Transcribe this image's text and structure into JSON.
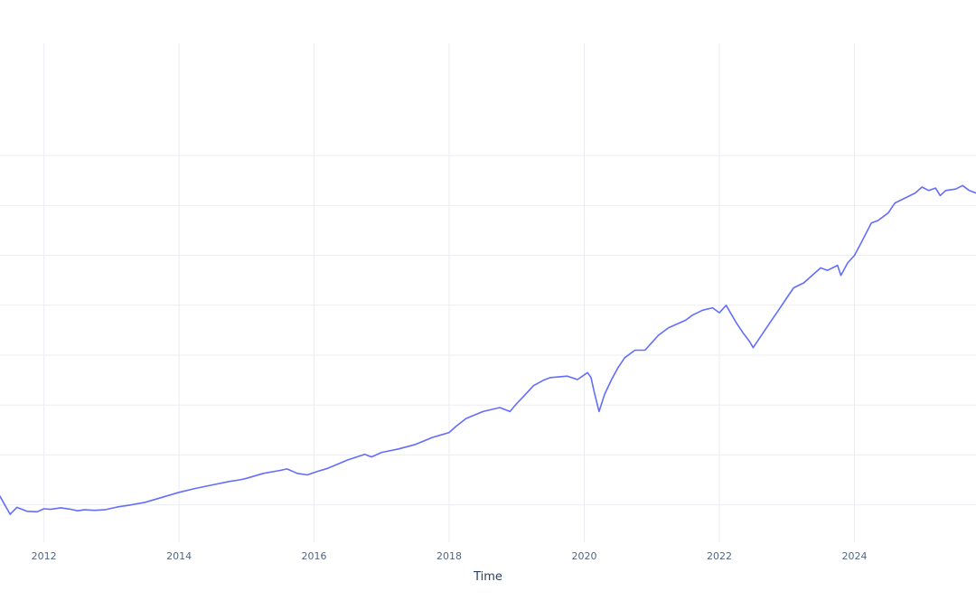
{
  "chart_data": {
    "type": "line",
    "title": "",
    "xlabel": "Time",
    "ylabel": "",
    "x_tick_labels": [
      "2012",
      "2014",
      "2016",
      "2018",
      "2020",
      "2022",
      "2024"
    ],
    "x_tick_values": [
      2012,
      2014,
      2016,
      2018,
      2020,
      2022,
      2024
    ],
    "xlim": [
      2011.35,
      2025.8
    ],
    "ylim": [
      0,
      1000
    ],
    "y_gridlines": [
      75,
      175,
      275,
      375,
      475,
      575,
      675,
      775
    ],
    "grid": true,
    "legend": "none",
    "colors": {
      "line": "#636efa",
      "grid": "#ebedf2"
    },
    "series": [
      {
        "x": [
          2011.35,
          2011.5,
          2011.6,
          2011.75,
          2011.9,
          2012.0,
          2012.1,
          2012.25,
          2012.4,
          2012.5,
          2012.6,
          2012.75,
          2012.9,
          2013.0,
          2013.1,
          2013.25,
          2013.5,
          2013.75,
          2014.0,
          2014.25,
          2014.5,
          2014.75,
          2014.9,
          2015.0,
          2015.25,
          2015.5,
          2015.6,
          2015.75,
          2015.9,
          2016.05,
          2016.2,
          2016.5,
          2016.75,
          2016.85,
          2017.0,
          2017.25,
          2017.5,
          2017.75,
          2017.9,
          2018.0,
          2018.1,
          2018.25,
          2018.5,
          2018.75,
          2018.9,
          2019.0,
          2019.1,
          2019.25,
          2019.4,
          2019.5,
          2019.75,
          2019.9,
          2020.05,
          2020.1,
          2020.15,
          2020.22,
          2020.3,
          2020.4,
          2020.5,
          2020.6,
          2020.75,
          2020.9,
          2021.0,
          2021.1,
          2021.25,
          2021.5,
          2021.6,
          2021.75,
          2021.9,
          2022.0,
          2022.1,
          2022.25,
          2022.35,
          2022.45,
          2022.5,
          2022.6,
          2022.75,
          2022.9,
          2023.0,
          2023.1,
          2023.25,
          2023.5,
          2023.6,
          2023.75,
          2023.8,
          2023.9,
          2024.0,
          2024.1,
          2024.25,
          2024.35,
          2024.5,
          2024.6,
          2024.75,
          2024.9,
          2025.0,
          2025.1,
          2025.2,
          2025.27,
          2025.35,
          2025.5,
          2025.6,
          2025.7,
          2025.8
        ],
        "y": [
          92,
          56,
          70,
          62,
          61,
          67,
          66,
          69,
          66,
          63,
          65,
          64,
          65,
          68,
          71,
          74,
          80,
          90,
          100,
          108,
          115,
          122,
          125,
          128,
          138,
          144,
          147,
          138,
          135,
          142,
          148,
          165,
          176,
          171,
          180,
          187,
          196,
          210,
          216,
          220,
          232,
          248,
          262,
          270,
          262,
          278,
          292,
          314,
          325,
          330,
          333,
          326,
          340,
          330,
          300,
          262,
          296,
          325,
          350,
          370,
          385,
          385,
          400,
          415,
          430,
          445,
          455,
          465,
          470,
          460,
          475,
          440,
          420,
          402,
          390,
          410,
          440,
          470,
          490,
          510,
          520,
          550,
          545,
          555,
          535,
          560,
          575,
          600,
          640,
          645,
          660,
          680,
          690,
          700,
          712,
          705,
          710,
          695,
          705,
          708,
          715,
          705,
          700
        ]
      }
    ]
  }
}
